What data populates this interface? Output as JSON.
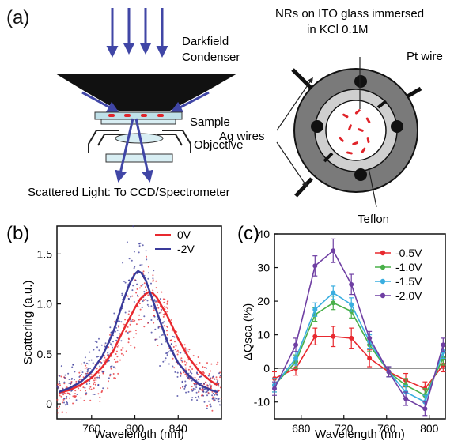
{
  "panel_a": {
    "tag": "(a)",
    "condenser_label_1": "Darkfield",
    "condenser_label_2": "Condenser",
    "sample_label": "Sample",
    "objective_label": "Objective",
    "scattered_label": "Scattered Light: To CCD/Spectrometer",
    "nrs_label_1": "NRs on ITO glass immersed",
    "nrs_label_2": "in KCl 0.1M",
    "pt_label": "Pt wire",
    "ag_label": "Ag wires",
    "teflon_label": "Teflon"
  },
  "colors": {
    "arrow": "#4046a6",
    "sample_red": "#e0242a",
    "curve_red": "#e8292f",
    "curve_blue": "#3a3a9a"
  },
  "chart_data": [
    {
      "panel": "(b)",
      "type": "line",
      "xlabel": "Wavelength (nm)",
      "ylabel": "Scattering (a.u.)",
      "xlim": [
        728,
        880
      ],
      "ylim": [
        -0.15,
        1.78
      ],
      "xticks": [
        760,
        800,
        840
      ],
      "yticks": [
        0,
        0.5,
        1.0,
        1.5
      ],
      "ytick_labels": [
        "0",
        "0.5",
        "1.0",
        "1.5"
      ],
      "legend_position": "top-right",
      "series": [
        {
          "name": "0V",
          "color": "#e8292f",
          "peak_x": 813,
          "peak_y": 1.12,
          "width": 26,
          "baseline": 0.02,
          "x": [
            730,
            740,
            750,
            760,
            770,
            780,
            790,
            800,
            805,
            810,
            813,
            816,
            820,
            830,
            840,
            850,
            860,
            870,
            876
          ],
          "y": [
            0.11,
            0.14,
            0.19,
            0.26,
            0.37,
            0.53,
            0.75,
            0.96,
            1.05,
            1.1,
            1.12,
            1.11,
            1.07,
            0.88,
            0.65,
            0.46,
            0.32,
            0.23,
            0.19
          ]
        },
        {
          "name": "-2V",
          "color": "#3a3a9a",
          "peak_x": 803,
          "peak_y": 1.33,
          "width": 22,
          "baseline": 0.02,
          "x": [
            730,
            740,
            750,
            760,
            770,
            780,
            790,
            795,
            800,
            803,
            806,
            810,
            820,
            830,
            840,
            850,
            860,
            870,
            876
          ],
          "y": [
            0.12,
            0.16,
            0.22,
            0.32,
            0.48,
            0.72,
            1.05,
            1.2,
            1.3,
            1.33,
            1.31,
            1.24,
            0.93,
            0.62,
            0.41,
            0.28,
            0.19,
            0.14,
            0.12
          ]
        }
      ]
    },
    {
      "panel": "(c)",
      "type": "line",
      "xlabel": "Wavelength (nm)",
      "ylabel": "ΔQsca (%)",
      "xlim": [
        655,
        815
      ],
      "ylim": [
        -15,
        40
      ],
      "xticks": [
        680,
        720,
        760,
        800
      ],
      "yticks": [
        -10,
        0,
        10,
        20,
        30,
        40
      ],
      "legend_position": "top-right",
      "x": [
        655,
        675,
        693,
        710,
        727,
        744,
        762,
        778,
        796,
        813
      ],
      "series": [
        {
          "name": "-0.5V",
          "color": "#e8292f",
          "values": [
            -3,
            0,
            9.5,
            9.5,
            9,
            3,
            -1,
            -3.5,
            -6,
            1
          ],
          "errors": [
            2,
            2,
            2.5,
            3,
            3,
            2.5,
            1.5,
            2,
            2,
            2
          ]
        },
        {
          "name": "-1.0V",
          "color": "#49b049",
          "values": [
            -5,
            2,
            16,
            19.5,
            17,
            7,
            -1,
            -5,
            -8,
            3
          ],
          "errors": [
            2,
            2,
            2,
            2,
            2,
            2,
            1.5,
            2,
            2,
            2
          ]
        },
        {
          "name": "-1.5V",
          "color": "#3aaee0",
          "values": [
            -5,
            3,
            17.5,
            22.5,
            19,
            8,
            -1,
            -7,
            -10,
            5
          ],
          "errors": [
            2,
            2,
            2,
            2,
            2,
            2,
            1.5,
            2,
            2,
            2
          ]
        },
        {
          "name": "-2.0V",
          "color": "#6f3fa3",
          "values": [
            -6,
            7,
            30.5,
            35,
            25,
            9,
            -1,
            -9,
            -12,
            7
          ],
          "errors": [
            2,
            2,
            3,
            3.5,
            3,
            2,
            1.5,
            2,
            2,
            2
          ]
        }
      ]
    }
  ]
}
